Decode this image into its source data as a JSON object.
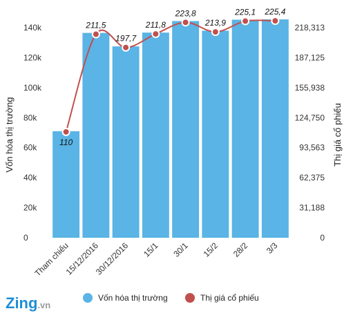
{
  "chart_data": {
    "type": "bar+line",
    "categories": [
      "Tham chiếu",
      "15/12/2016",
      "30/12/2016",
      "15/1",
      "30/1",
      "15/2",
      "28/2",
      "3/3"
    ],
    "series": [
      {
        "name": "Vốn hóa thị trường",
        "type": "bar",
        "axis": "left",
        "color": "#5ab4e5",
        "values": [
          71000,
          136500,
          127500,
          136700,
          144400,
          138000,
          145300,
          145500
        ]
      },
      {
        "name": "Thị giá cổ phiếu",
        "type": "line",
        "axis": "right",
        "color": "#c0504d",
        "values": [
          110,
          211.5,
          197.7,
          211.8,
          223.8,
          213.9,
          225.1,
          225.4
        ],
        "labels": [
          "110",
          "211,5",
          "197,7",
          "211,8",
          "223,8",
          "213,9",
          "225,1",
          "225,4"
        ]
      }
    ],
    "y_left": {
      "label": "Vốn hóa thị trường",
      "range": [
        0,
        140000
      ],
      "ticks": [
        0,
        20000,
        40000,
        60000,
        80000,
        100000,
        120000,
        140000
      ],
      "tick_labels": [
        "0",
        "20k",
        "40k",
        "60k",
        "80k",
        "100k",
        "120k",
        "140k"
      ]
    },
    "y_right": {
      "label": "Thị giá cổ phiếu",
      "range": [
        0,
        218.313
      ],
      "ticks": [
        0,
        31.188,
        62.375,
        93.563,
        124.75,
        155.938,
        187.125,
        218.313
      ],
      "tick_labels": [
        "0",
        "31,188",
        "62,375",
        "93,563",
        "124,750",
        "155,938",
        "187,125",
        "218,313"
      ]
    },
    "grid": false,
    "legend_position": "bottom"
  },
  "logo": {
    "brand": "Zing",
    "suffix": ".vn",
    "colors": {
      "brand": "#1f8ed6",
      "suffix": "#9a9a9a"
    }
  }
}
